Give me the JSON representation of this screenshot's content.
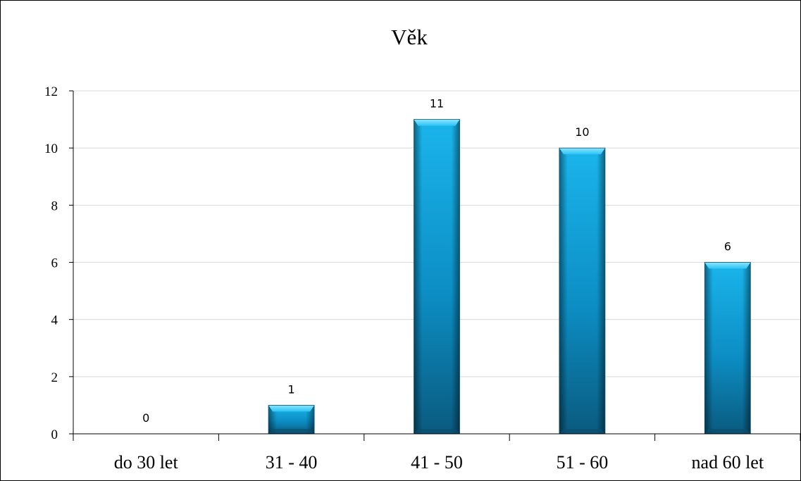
{
  "chart_data": {
    "type": "bar",
    "title": "Věk",
    "xlabel": "",
    "ylabel": "",
    "categories": [
      "do 30 let",
      "31 - 40",
      "41 - 50",
      "51 - 60",
      "nad 60 let"
    ],
    "values": [
      0,
      1,
      11,
      10,
      6
    ],
    "data_labels": [
      "0",
      "1",
      "11",
      "10",
      "6"
    ],
    "ylim": [
      0,
      12
    ],
    "yticks": [
      0,
      2,
      4,
      6,
      8,
      10,
      12
    ],
    "ytick_labels": [
      "0",
      "2",
      "4",
      "6",
      "8",
      "10",
      "12"
    ],
    "grid": true,
    "legend": "none",
    "colors": {
      "bar_top": "#4fd2fb",
      "bar_mid": "#0fa3de",
      "bar_bottom": "#0a5f86",
      "grid": "#d9d9d9",
      "axis": "#000000"
    }
  }
}
